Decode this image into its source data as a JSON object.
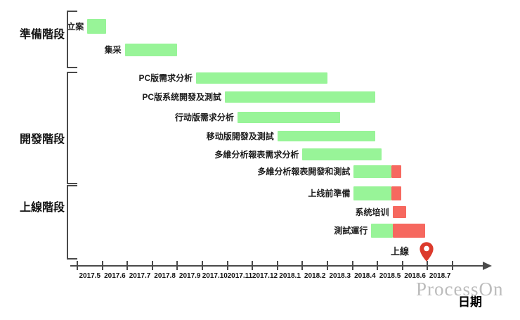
{
  "watermark": "ProcessOn",
  "chart_data": {
    "type": "gantt",
    "title": "",
    "xlabel": "日期",
    "ylabel": "",
    "axis": {
      "unit": "month",
      "tick_labels": [
        "2017.5",
        "2017.6",
        "2017.7",
        "2017.8",
        "2017.9",
        "2017.10",
        "2017.11",
        "2017.12",
        "2018.1",
        "2018.2",
        "2018.3",
        "2018.4",
        "2018.5",
        "2018.6",
        "2018.7"
      ]
    },
    "colors": {
      "planned": "#98f498",
      "overrun": "#f6685f",
      "axis": "#4a4a4a",
      "milestone_pin": "#dc3a2c"
    },
    "phases": [
      {
        "name": "準備階段",
        "tasks": [
          "立案",
          "集采"
        ]
      },
      {
        "name": "開發階段",
        "tasks": [
          "PC版需求分析",
          "PC版系统開發及測試",
          "行动版需求分析",
          "移动版開發及測試",
          "多維分析報表需求分析",
          "多維分析報表開發和測試"
        ]
      },
      {
        "name": "上線階段",
        "tasks": [
          "上线前準備",
          "系统培训",
          "測試運行"
        ]
      }
    ],
    "tasks": [
      {
        "label": "立案",
        "segments": [
          {
            "type": "planned",
            "start": 0.4,
            "end": 1.15
          }
        ]
      },
      {
        "label": "集采",
        "segments": [
          {
            "type": "planned",
            "start": 1.9,
            "end": 4.0
          }
        ]
      },
      {
        "label": "PC版需求分析",
        "segments": [
          {
            "type": "planned",
            "start": 4.75,
            "end": 10.0
          }
        ]
      },
      {
        "label": "PC版系统開發及測試",
        "segments": [
          {
            "type": "planned",
            "start": 5.9,
            "end": 11.9
          }
        ]
      },
      {
        "label": "行动版需求分析",
        "segments": [
          {
            "type": "planned",
            "start": 6.4,
            "end": 10.5
          }
        ]
      },
      {
        "label": "移动版開發及測試",
        "segments": [
          {
            "type": "planned",
            "start": 8.0,
            "end": 11.9
          }
        ]
      },
      {
        "label": "多維分析報表需求分析",
        "segments": [
          {
            "type": "planned",
            "start": 9.0,
            "end": 12.15
          }
        ]
      },
      {
        "label": "多維分析報表開發和測試",
        "segments": [
          {
            "type": "planned",
            "start": 11.05,
            "end": 12.55
          },
          {
            "type": "overrun",
            "start": 12.55,
            "end": 12.95
          }
        ]
      },
      {
        "label": "上线前準備",
        "segments": [
          {
            "type": "planned",
            "start": 11.05,
            "end": 12.55
          },
          {
            "type": "overrun",
            "start": 12.55,
            "end": 12.95
          }
        ]
      },
      {
        "label": "系统培训",
        "segments": [
          {
            "type": "overrun",
            "start": 12.6,
            "end": 13.15
          }
        ]
      },
      {
        "label": "測試運行",
        "segments": [
          {
            "type": "planned",
            "start": 11.75,
            "end": 12.6
          },
          {
            "type": "overrun",
            "start": 12.6,
            "end": 13.9
          }
        ]
      }
    ],
    "milestone": {
      "label": "上線",
      "month": 14.0
    }
  }
}
